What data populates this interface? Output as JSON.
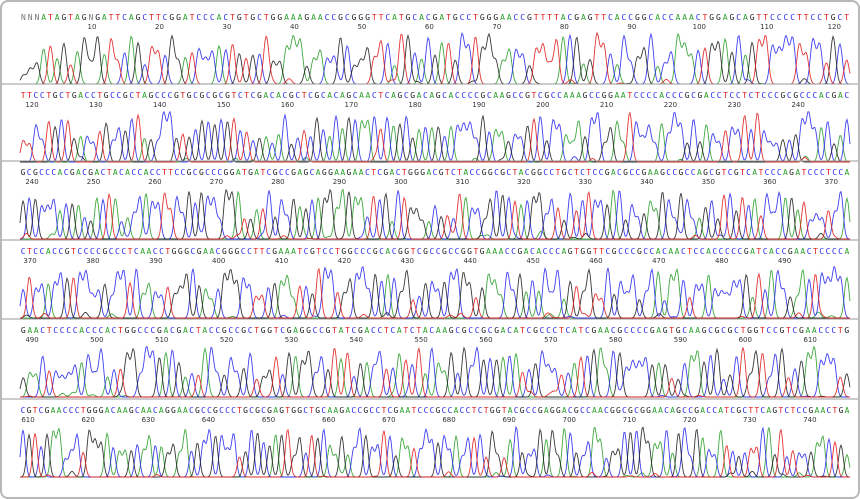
{
  "rows": [
    {
      "sequence": "NNNATAGTAGNGATTCAGCTTCGGATCCCACTGTGCTGGAAAGAACCGCGGGTTCATGCACGATGCCTGGGAACCGTTTTACGAGTTCACCGGCACCAAACTGGAGCAGTTCCCCTTCCTGCT",
      "positions": [
        10,
        20,
        30,
        40,
        50,
        60,
        70,
        80,
        90,
        100,
        110,
        120
      ]
    },
    {
      "sequence": "TTCCTGCTGACCTGCCGCTAGCCCGTGCGCGCGTCTCGACACGCTCGCACAGCAACTCAGCGACAGCACCCCGCAAGCCGTCGCCAAAGCCGGAATCCCCACCCGCGACCTCCTCTCCCGCGCCCACGAC",
      "positions": [
        120,
        130,
        140,
        150,
        160,
        170,
        180,
        190,
        200,
        210,
        220,
        230,
        240
      ]
    },
    {
      "sequence": "GCGCCCACGACGACTACACCACCTTCCGCGCCCGGATGATCGCCGAGCAGGAAGAACTCGACTGGGACGTCTACCGGCGCTACGGCCTGCTCTCCGACGCCGAAGCCGCCAGCGTCGTCATCCCAGATCCCTCCA",
      "positions": [
        240,
        250,
        260,
        270,
        280,
        290,
        300,
        310,
        320,
        330,
        340,
        350,
        360,
        370
      ]
    },
    {
      "sequence": "CTCCACCGTCCCCGCCCTCAACCTGGGCGAACGGGCCTTCGAAATCGTCCTGGCCCGCACGGTCGCCGCCGGTGAAACCGACACCCAGTGGTTCGCCCGCCACAACTCCACCCCCGATCACCGAACTCCCCA",
      "positions": [
        370,
        380,
        390,
        400,
        410,
        420,
        430,
        440,
        450,
        460,
        470,
        480,
        490
      ]
    },
    {
      "sequence": "GAACTCCCCACCCACTGGCCCGACGACTACCGCCGCTGGTCGAGGCCGTATCGACCTCATCTACAAGCGCCGCGACATCGCCCTCATCGAACGCCCCGAGTGCAAGCGCGCTGGTCCGTCGAACCCTG",
      "positions": [
        490,
        500,
        510,
        520,
        530,
        540,
        550,
        560,
        570,
        580,
        590,
        600,
        610
      ]
    },
    {
      "sequence": "CGTCGAACCCTGGGACAAGCAACAGGAACGCCGCCCTGCGCGAGTGGCTGCAAGACCGCCTCGAATCCCGCCACCTCTGGTACGCCGAGGACGCCAACGGCGCGGAACAGCCGACCATCGCTTCAGTCTCCGAACTGA",
      "positions": [
        610,
        620,
        630,
        640,
        650,
        660,
        670,
        680,
        690,
        700,
        710,
        720,
        730,
        740
      ]
    }
  ]
}
